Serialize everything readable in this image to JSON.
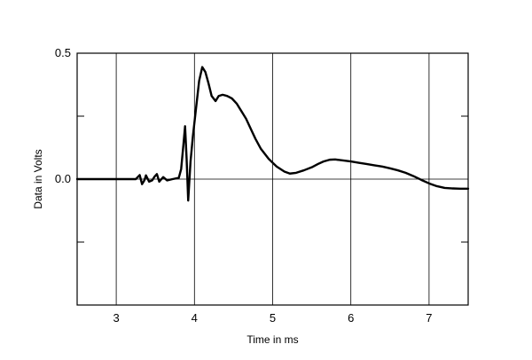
{
  "chart_data": {
    "type": "line",
    "xlabel": "Time in ms",
    "ylabel": "Data in Volts",
    "xlim": [
      2.5,
      7.5
    ],
    "ylim": [
      -0.5,
      0.5
    ],
    "x_ticks": [
      3,
      4,
      5,
      6,
      7
    ],
    "y_tick_labels": [
      {
        "value": 0.5,
        "label": "0.5"
      },
      {
        "value": 0.0,
        "label": "0.0"
      }
    ],
    "y_minor_ticks": [
      0.25,
      -0.25
    ],
    "grid": {
      "vertical": true,
      "horizontal_zero_line": true
    },
    "line_color": "#000000",
    "series": [
      {
        "points": [
          [
            2.5,
            0.0
          ],
          [
            3.05,
            0.0
          ],
          [
            3.25,
            0.0
          ],
          [
            3.3,
            0.016
          ],
          [
            3.33,
            -0.02
          ],
          [
            3.36,
            -0.005
          ],
          [
            3.38,
            0.015
          ],
          [
            3.42,
            -0.01
          ],
          [
            3.46,
            -0.005
          ],
          [
            3.49,
            0.01
          ],
          [
            3.52,
            0.02
          ],
          [
            3.55,
            -0.01
          ],
          [
            3.6,
            0.008
          ],
          [
            3.65,
            -0.005
          ],
          [
            3.72,
            0.0
          ],
          [
            3.8,
            0.005
          ],
          [
            3.83,
            0.04
          ],
          [
            3.86,
            0.14
          ],
          [
            3.88,
            0.21
          ],
          [
            3.9,
            0.08
          ],
          [
            3.92,
            -0.085
          ],
          [
            3.95,
            0.07
          ],
          [
            3.98,
            0.17
          ],
          [
            4.02,
            0.28
          ],
          [
            4.06,
            0.39
          ],
          [
            4.1,
            0.445
          ],
          [
            4.14,
            0.425
          ],
          [
            4.18,
            0.38
          ],
          [
            4.22,
            0.33
          ],
          [
            4.27,
            0.31
          ],
          [
            4.31,
            0.33
          ],
          [
            4.36,
            0.335
          ],
          [
            4.42,
            0.33
          ],
          [
            4.48,
            0.32
          ],
          [
            4.54,
            0.3
          ],
          [
            4.6,
            0.27
          ],
          [
            4.66,
            0.24
          ],
          [
            4.72,
            0.2
          ],
          [
            4.78,
            0.16
          ],
          [
            4.85,
            0.12
          ],
          [
            4.95,
            0.08
          ],
          [
            5.05,
            0.05
          ],
          [
            5.15,
            0.03
          ],
          [
            5.22,
            0.022
          ],
          [
            5.3,
            0.025
          ],
          [
            5.4,
            0.035
          ],
          [
            5.5,
            0.047
          ],
          [
            5.58,
            0.06
          ],
          [
            5.65,
            0.07
          ],
          [
            5.73,
            0.077
          ],
          [
            5.8,
            0.078
          ],
          [
            5.9,
            0.074
          ],
          [
            6.0,
            0.07
          ],
          [
            6.1,
            0.065
          ],
          [
            6.2,
            0.06
          ],
          [
            6.3,
            0.055
          ],
          [
            6.4,
            0.05
          ],
          [
            6.5,
            0.043
          ],
          [
            6.6,
            0.035
          ],
          [
            6.7,
            0.025
          ],
          [
            6.8,
            0.012
          ],
          [
            6.9,
            -0.003
          ],
          [
            7.0,
            -0.017
          ],
          [
            7.1,
            -0.028
          ],
          [
            7.2,
            -0.035
          ],
          [
            7.3,
            -0.037
          ],
          [
            7.4,
            -0.038
          ],
          [
            7.5,
            -0.038
          ]
        ]
      }
    ]
  }
}
